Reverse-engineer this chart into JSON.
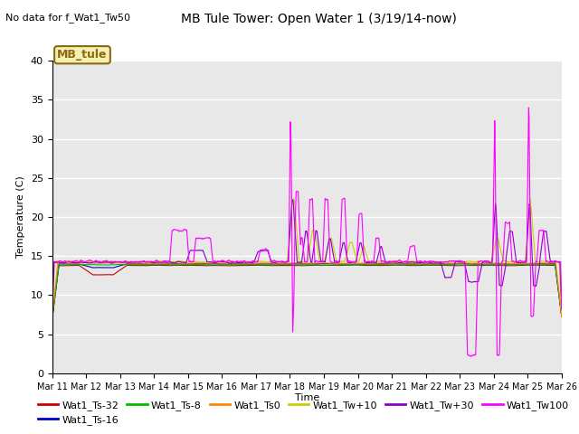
{
  "title": "MB Tule Tower: Open Water 1 (3/19/14-now)",
  "subtitle": "No data for f_Wat1_Tw50",
  "xlabel": "Time",
  "ylabel": "Temperature (C)",
  "ylim": [
    0,
    40
  ],
  "yticks": [
    0,
    5,
    10,
    15,
    20,
    25,
    30,
    35,
    40
  ],
  "bg_color": "#e8e8e8",
  "fig_color": "#ffffff",
  "legend_box_label": "MB_tule",
  "legend_box_color": "#f5f0b0",
  "legend_box_border": "#8b6914",
  "series": [
    {
      "label": "Wat1_Ts-32",
      "color": "#cc0000"
    },
    {
      "label": "Wat1_Ts-16",
      "color": "#0000cc"
    },
    {
      "label": "Wat1_Ts-8",
      "color": "#00bb00"
    },
    {
      "label": "Wat1_Ts0",
      "color": "#ff8800"
    },
    {
      "label": "Wat1_Tw+10",
      "color": "#cccc00"
    },
    {
      "label": "Wat1_Tw+30",
      "color": "#8800cc"
    },
    {
      "label": "Wat1_Tw100",
      "color": "#ff00ff"
    }
  ],
  "xticklabels": [
    "Mar 1 1",
    "Mar 1 2",
    "Mar 1 3",
    "Mar 1 4",
    "Mar 1 5",
    "Mar 1 6",
    "Mar 1 7",
    "Mar 1 8",
    "Mar 1 9",
    "Mar 2 0",
    "Mar 2 1",
    "Mar 2 2",
    "Mar 2 3",
    "Mar 2 4",
    "Mar 2 5",
    "Mar 2 6"
  ]
}
